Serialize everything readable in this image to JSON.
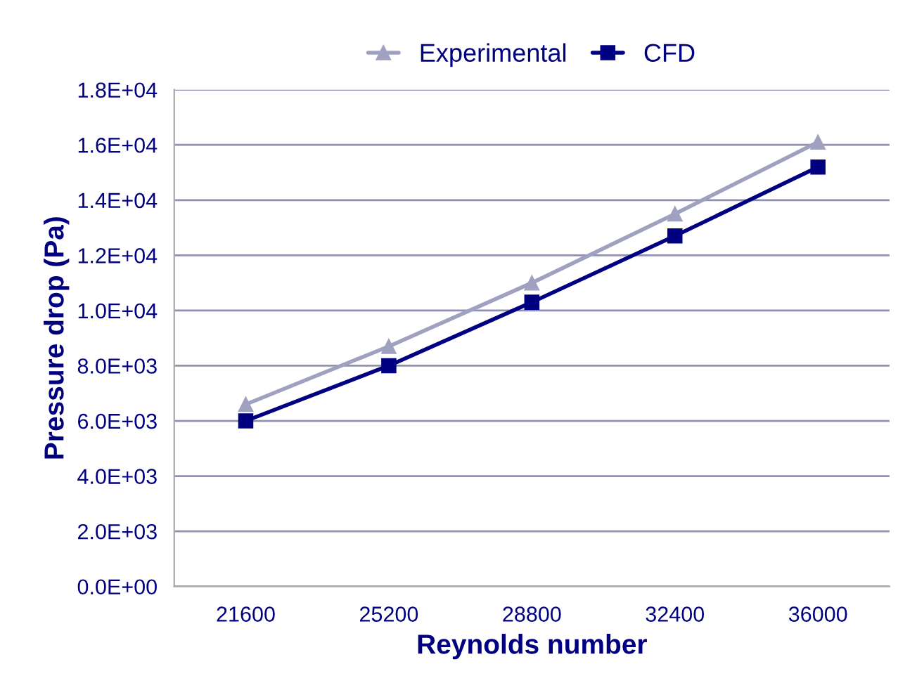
{
  "chart_data": {
    "type": "line",
    "xlabel": "Reynolds number",
    "ylabel": "Pressure drop (Pa)",
    "categories": [
      "21600",
      "25200",
      "28800",
      "32400",
      "36000"
    ],
    "series": [
      {
        "name": "Experimental",
        "color": "#a0a0c0",
        "marker": "triangle",
        "values": [
          6600,
          8700,
          11000,
          13500,
          16100
        ]
      },
      {
        "name": "CFD",
        "color": "#000080",
        "marker": "square",
        "values": [
          6000,
          8000,
          10300,
          12700,
          15200
        ]
      }
    ],
    "ylim": [
      0,
      18000
    ],
    "yticks": [
      {
        "value": 0,
        "label": "0.0E+00"
      },
      {
        "value": 2000,
        "label": "2.0E+03"
      },
      {
        "value": 4000,
        "label": "4.0E+03"
      },
      {
        "value": 6000,
        "label": "6.0E+03"
      },
      {
        "value": 8000,
        "label": "8.0E+03"
      },
      {
        "value": 10000,
        "label": "1.0E+04"
      },
      {
        "value": 12000,
        "label": "1.2E+04"
      },
      {
        "value": 14000,
        "label": "1.4E+04"
      },
      {
        "value": 16000,
        "label": "1.6E+04"
      },
      {
        "value": 18000,
        "label": "1.8E+04"
      }
    ],
    "grid": "y",
    "legend": "top",
    "line_style": "solid"
  }
}
